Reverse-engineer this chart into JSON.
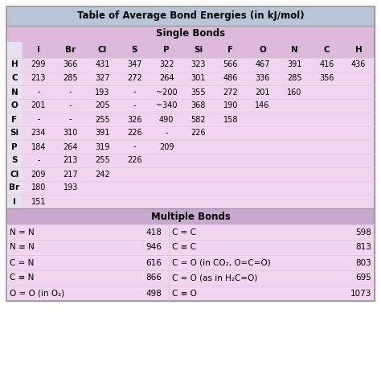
{
  "title": "Table of Average Bond Energies (in kJ/mol)",
  "title_bg": "#b8c4d8",
  "single_bonds_label": "Single Bonds",
  "single_bonds_bg": "#ddb8dd",
  "data_row_bg": "#f0d4f0",
  "multiple_bonds_label": "Multiple Bonds",
  "multiple_bonds_bg": "#c8a8cc",
  "multiple_row_bg": "#f0d4f0",
  "col_headers": [
    "I",
    "Br",
    "Cl",
    "S",
    "P",
    "Si",
    "F",
    "O",
    "N",
    "C",
    "H"
  ],
  "row_headers": [
    "H",
    "C",
    "N",
    "O",
    "F",
    "Si",
    "P",
    "S",
    "Cl",
    "Br",
    "I"
  ],
  "single_data": [
    [
      "299",
      "366",
      "431",
      "347",
      "322",
      "323",
      "566",
      "467",
      "391",
      "416",
      "436"
    ],
    [
      "213",
      "285",
      "327",
      "272",
      "264",
      "301",
      "486",
      "336",
      "285",
      "356",
      ""
    ],
    [
      "-",
      "-",
      "193",
      "-",
      "~200",
      "355",
      "272",
      "201",
      "160",
      "",
      ""
    ],
    [
      "201",
      "-",
      "205",
      "-",
      "~340",
      "368",
      "190",
      "146",
      "",
      "",
      ""
    ],
    [
      "-",
      "-",
      "255",
      "326",
      "490",
      "582",
      "158",
      "",
      "",
      "",
      ""
    ],
    [
      "234",
      "310",
      "391",
      "226",
      "-",
      "226",
      "",
      "",
      "",
      "",
      ""
    ],
    [
      "184",
      "264",
      "319",
      "-",
      "209",
      "",
      "",
      "",
      "",
      "",
      ""
    ],
    [
      "-",
      "213",
      "255",
      "226",
      "",
      "",
      "",
      "",
      "",
      "",
      ""
    ],
    [
      "209",
      "217",
      "242",
      "",
      "",
      "",
      "",
      "",
      "",
      "",
      ""
    ],
    [
      "180",
      "193",
      "",
      "",
      "",
      "",
      "",
      "",
      "",
      "",
      ""
    ],
    [
      "151",
      "",
      "",
      "",
      "",
      "",
      "",
      "",
      "",
      "",
      ""
    ]
  ],
  "multiple_left": [
    [
      "N = N",
      "418"
    ],
    [
      "N ≡ N",
      "946"
    ],
    [
      "C = N",
      "616"
    ],
    [
      "C ≡ N",
      "866"
    ],
    [
      "O = O (in O₂)",
      "498"
    ]
  ],
  "multiple_right": [
    [
      "C = C",
      "598"
    ],
    [
      "C ≡ C",
      "813"
    ],
    [
      "C = O (in CO₂, O=C=O)",
      "803"
    ],
    [
      "C = O (as in H₂C=O)",
      "695"
    ],
    [
      "C ≡ O",
      "1073"
    ]
  ]
}
